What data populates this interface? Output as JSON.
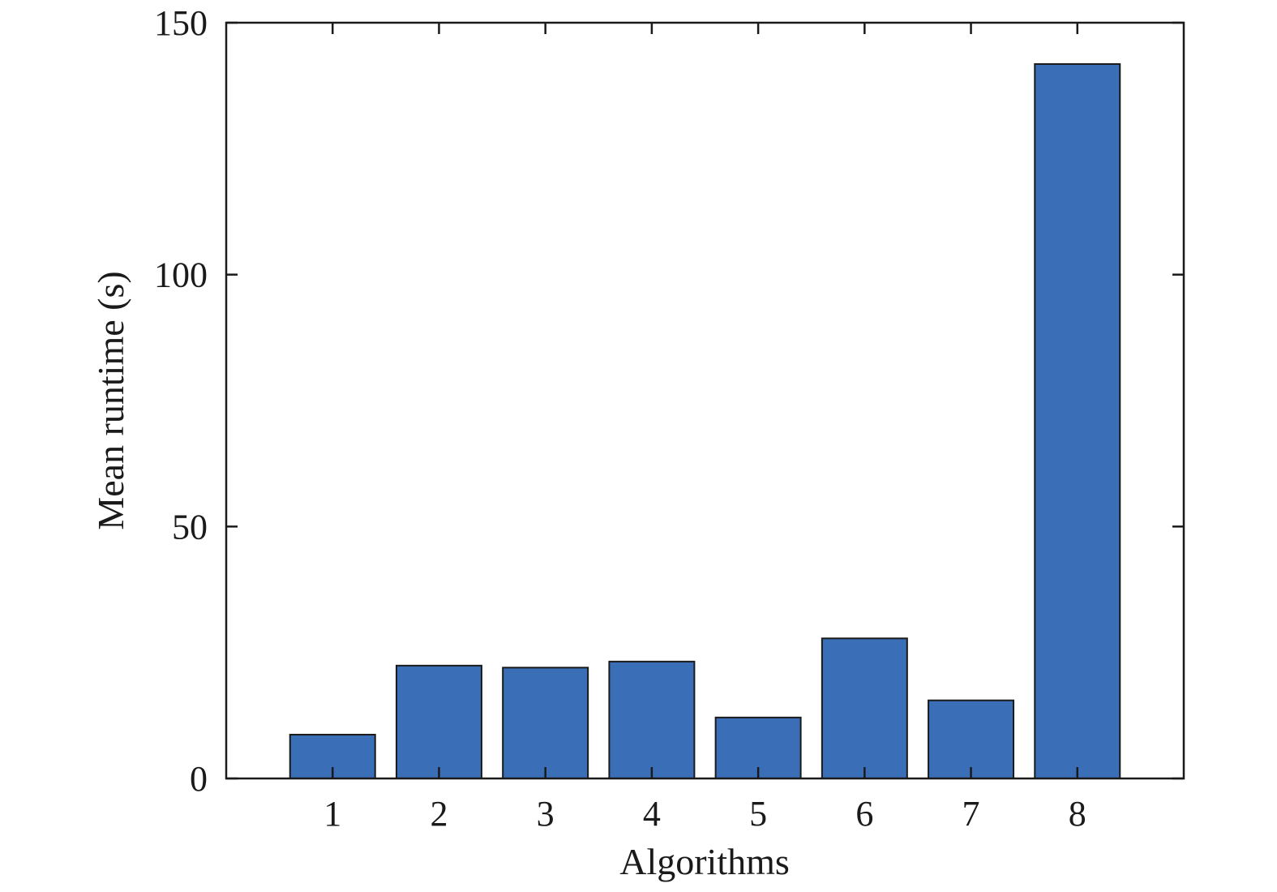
{
  "chart_data": {
    "type": "bar",
    "categories": [
      "1",
      "2",
      "3",
      "4",
      "5",
      "6",
      "7",
      "8"
    ],
    "values": [
      8.7,
      22.4,
      22.0,
      23.2,
      12.1,
      27.8,
      15.5,
      141.8
    ],
    "xlabel": "Algorithms",
    "ylabel": "Mean runtime (s)",
    "ylim": [
      0,
      150
    ],
    "xlim": [
      0,
      9
    ],
    "yticks": [
      0,
      50,
      100,
      150
    ],
    "bar_color": "#3a6fb7",
    "grid": false,
    "legend": "none"
  }
}
